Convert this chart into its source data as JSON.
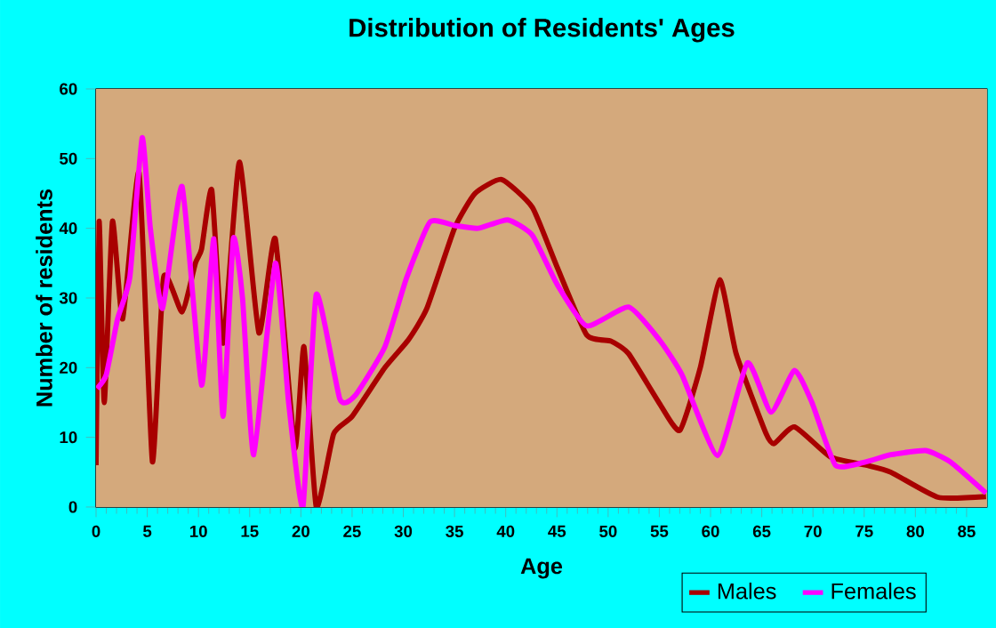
{
  "chart_data": {
    "type": "line",
    "title": "Distribution of Residents' Ages",
    "xlabel": "Age",
    "ylabel": "Number of residents",
    "xlim": [
      0,
      87
    ],
    "ylim": [
      0,
      60
    ],
    "xticks": [
      0,
      5,
      10,
      15,
      20,
      25,
      30,
      35,
      40,
      45,
      50,
      55,
      60,
      65,
      70,
      75,
      80,
      85
    ],
    "yticks": [
      0,
      10,
      20,
      30,
      40,
      50,
      60
    ],
    "grid": true,
    "legend": "bottom right",
    "line_style": "solid",
    "marker": "none",
    "series": [
      {
        "name": "Males",
        "color": "#a80000",
        "x": [
          0,
          0.3,
          0.8,
          1.6,
          2.6,
          4.2,
          5.5,
          6.6,
          8.4,
          9.7,
          10.3,
          11.3,
          12.4,
          14,
          15.9,
          17.5,
          19.4,
          20.3,
          21.5,
          23.2,
          25,
          28.2,
          30.5,
          32.3,
          35,
          37,
          39.6,
          42.6,
          45,
          47.9,
          50.3,
          52,
          55,
          57,
          59,
          60.9,
          62.5,
          65.4,
          66.2,
          68.2,
          71.7,
          75.2,
          77.6,
          82.2,
          86.9
        ],
        "values": [
          6,
          41,
          15,
          41,
          27,
          48,
          6.5,
          33,
          28,
          35,
          37,
          45.5,
          23.5,
          49.5,
          25,
          38.5,
          8.5,
          23,
          0,
          10.5,
          13,
          20,
          24,
          28.5,
          40,
          45,
          47,
          43,
          34.5,
          24.7,
          23.8,
          22,
          14.9,
          11,
          20,
          32.6,
          22,
          10.6,
          9.1,
          11.5,
          7.2,
          6,
          5,
          1.4,
          1.5
        ]
      },
      {
        "name": "Females",
        "color": "#ff00ff",
        "x": [
          0.1,
          1,
          2.1,
          3.3,
          4.5,
          5.3,
          6.5,
          8.4,
          10.3,
          11.5,
          12.4,
          13.4,
          14.3,
          15.4,
          17.5,
          18.8,
          20.2,
          21.5,
          23.8,
          25.3,
          28.2,
          30.3,
          32.6,
          35,
          37.3,
          40.2,
          42.6,
          45,
          47.9,
          52,
          55,
          57.2,
          60.7,
          63.6,
          65.9,
          68.2,
          69.9,
          72.2,
          75.2,
          77.6,
          81,
          83.4,
          86.9
        ],
        "values": [
          17,
          19,
          27,
          33,
          53,
          40,
          28.5,
          46,
          17.5,
          38.5,
          13,
          38.5,
          30,
          7.5,
          35,
          15,
          0,
          30.5,
          15.5,
          16,
          23,
          32.8,
          40.9,
          40.4,
          40,
          41.2,
          39,
          32,
          26,
          28.7,
          24,
          19,
          7.4,
          20.7,
          13.6,
          19.6,
          15,
          6,
          6.5,
          7.5,
          8.1,
          6.5,
          2
        ]
      }
    ]
  }
}
